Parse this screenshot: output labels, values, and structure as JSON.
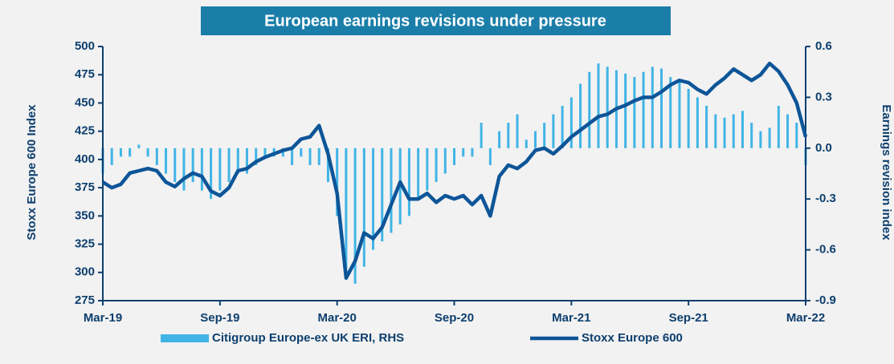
{
  "chart_data": {
    "type": "bar-line",
    "title": "European earnings revisions under pressure",
    "ylabel": "Stoxx Europe 600 Index",
    "y2label": "Earnings revision index",
    "categories": [
      "Mar-19",
      null,
      null,
      null,
      null,
      null,
      null,
      null,
      null,
      null,
      null,
      null,
      null,
      "Sep-19",
      null,
      null,
      null,
      null,
      null,
      null,
      null,
      null,
      null,
      null,
      null,
      null,
      "Mar-20",
      null,
      null,
      null,
      null,
      null,
      null,
      null,
      null,
      null,
      null,
      null,
      null,
      "Sep-20",
      null,
      null,
      null,
      null,
      null,
      null,
      null,
      null,
      null,
      null,
      null,
      null,
      "Mar-21",
      null,
      null,
      null,
      null,
      null,
      null,
      null,
      null,
      null,
      null,
      null,
      null,
      "Sep-21",
      null,
      null,
      null,
      null,
      null,
      null,
      null,
      null,
      null,
      null,
      null,
      null,
      "Mar-22"
    ],
    "series": [
      {
        "name": "Citigroup Europe-ex UK ERI, RHS",
        "color": "#41b4e6",
        "kind": "bar",
        "axis": "y2",
        "values": [
          -0.15,
          -0.1,
          -0.05,
          -0.05,
          0.02,
          -0.05,
          -0.1,
          -0.15,
          -0.2,
          -0.25,
          -0.2,
          -0.25,
          -0.3,
          -0.25,
          -0.2,
          -0.15,
          -0.15,
          -0.1,
          -0.05,
          -0.05,
          -0.05,
          -0.1,
          -0.05,
          -0.1,
          -0.1,
          -0.2,
          -0.4,
          -0.75,
          -0.8,
          -0.7,
          -0.6,
          -0.55,
          -0.5,
          -0.45,
          -0.4,
          -0.3,
          -0.25,
          -0.2,
          -0.15,
          -0.1,
          -0.05,
          -0.05,
          0.15,
          -0.1,
          0.1,
          0.15,
          0.2,
          0.05,
          0.1,
          0.15,
          0.2,
          0.25,
          0.3,
          0.38,
          0.45,
          0.5,
          0.48,
          0.46,
          0.44,
          0.42,
          0.45,
          0.48,
          0.47,
          0.42,
          0.4,
          0.35,
          0.3,
          0.25,
          0.2,
          0.18,
          0.2,
          0.22,
          0.15,
          0.1,
          0.12,
          0.25,
          0.2,
          0.15,
          -0.1
        ]
      },
      {
        "name": "Stoxx Europe 600",
        "color": "#0d5598",
        "kind": "line",
        "values": [
          380,
          375,
          378,
          388,
          390,
          392,
          390,
          380,
          376,
          383,
          388,
          385,
          372,
          368,
          375,
          390,
          392,
          398,
          402,
          405,
          408,
          410,
          418,
          420,
          430,
          405,
          370,
          295,
          310,
          335,
          330,
          340,
          360,
          380,
          365,
          365,
          370,
          362,
          368,
          365,
          368,
          360,
          368,
          350,
          385,
          395,
          392,
          398,
          408,
          410,
          405,
          412,
          420,
          426,
          432,
          438,
          440,
          445,
          448,
          452,
          455,
          455,
          460,
          466,
          470,
          468,
          462,
          458,
          466,
          472,
          480,
          475,
          470,
          475,
          485,
          478,
          466,
          450,
          420
        ]
      }
    ],
    "ylim": [
      275,
      500
    ],
    "yticks": [
      275,
      300,
      325,
      350,
      375,
      400,
      425,
      450,
      475,
      500
    ],
    "y2lim": [
      -0.9,
      0.6
    ],
    "y2ticks": [
      -0.9,
      -0.6,
      -0.3,
      {
        "value": 0,
        "label": "0.0"
      },
      0.3,
      0.6
    ]
  }
}
